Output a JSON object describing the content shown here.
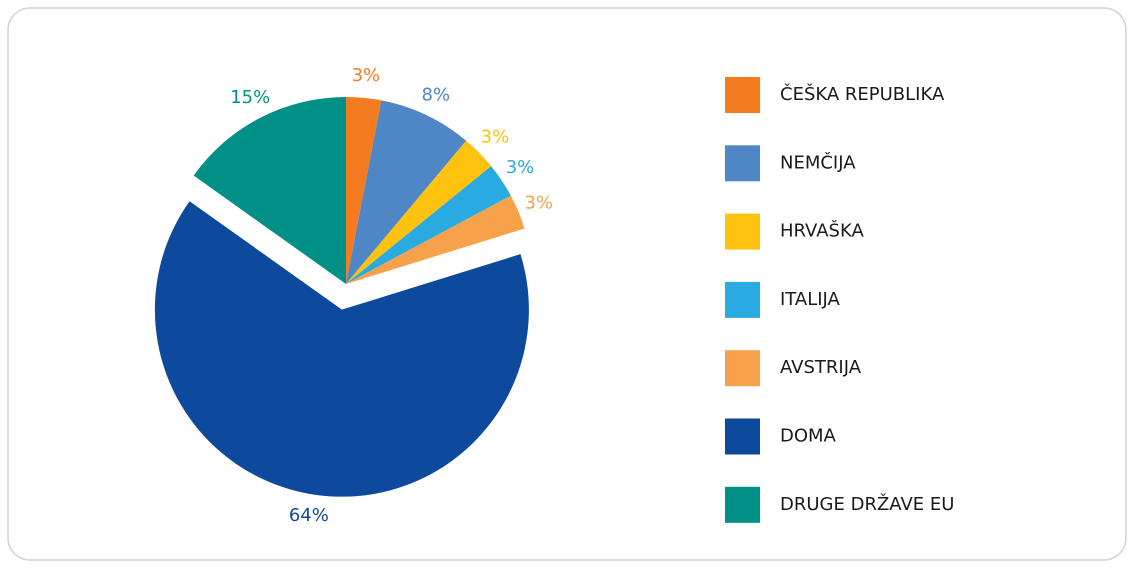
{
  "chart_data": {
    "type": "pie",
    "categories": [
      "ČEŠKA REPUBLIKA",
      "NEMČIJA",
      "HRVAŠKA",
      "ITALIJA",
      "AVSTRIJA",
      "DOMA",
      "DRUGE DRŽAVE EU"
    ],
    "values": [
      3,
      8,
      3,
      3,
      3,
      64,
      15
    ],
    "value_labels": [
      "3%",
      "8%",
      "3%",
      "3%",
      "3%",
      "64%",
      "15%"
    ],
    "colors": [
      "#f47b20",
      "#4f86c6",
      "#ffc20e",
      "#29abe2",
      "#f7a24b",
      "#0d4a9e",
      "#009087"
    ],
    "explode": [
      false,
      false,
      false,
      false,
      false,
      true,
      false
    ],
    "legend": "right"
  }
}
